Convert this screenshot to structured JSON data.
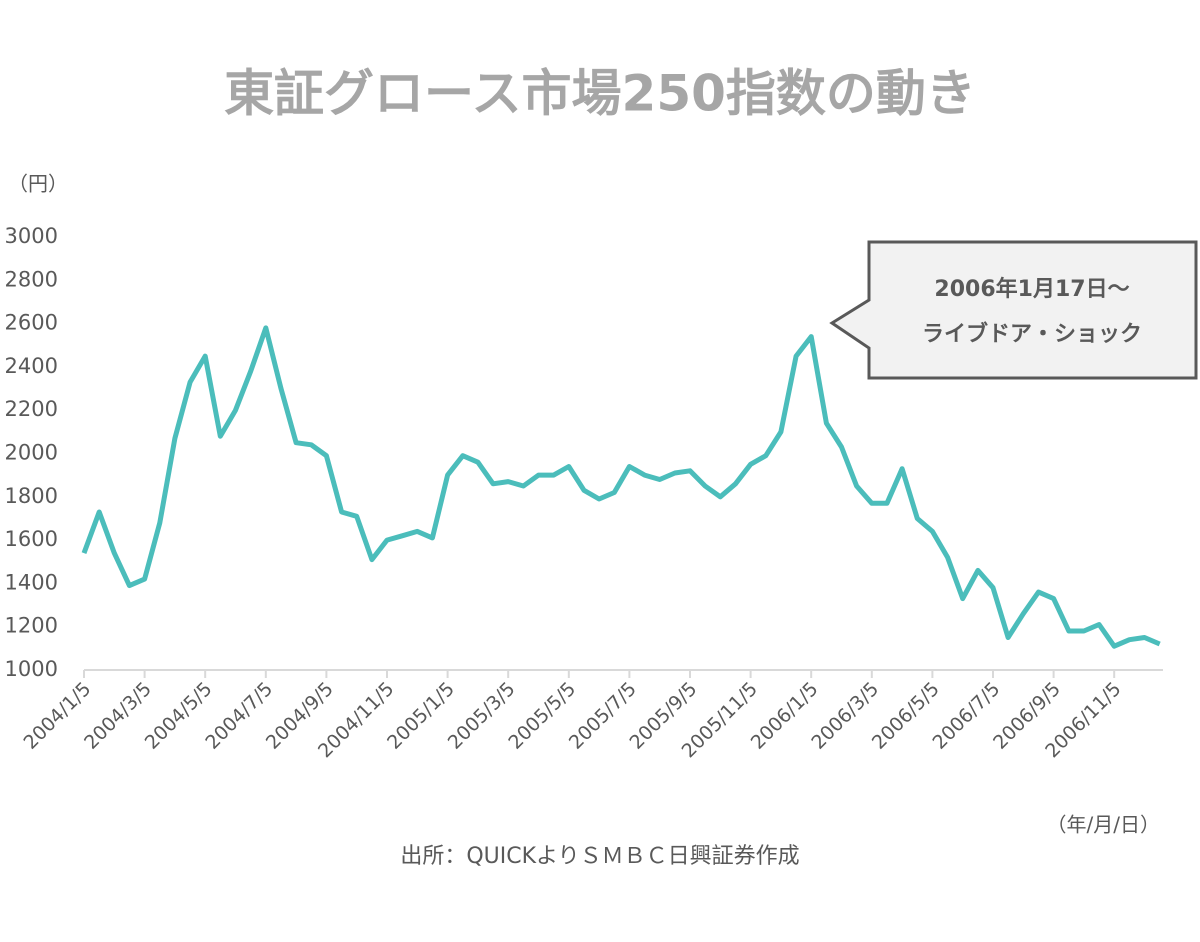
{
  "chart_data": {
    "type": "line",
    "title": "東証グロース市場250指数の動き",
    "y_unit": "（円）",
    "x_unit": "（年/月/日）",
    "source": "出所：QUICKよりＳＭＢＣ日興証券作成",
    "annotation": [
      "2006年1月17日～",
      "ライブドア・ショック"
    ],
    "color": "#4bbdbb",
    "categories": [
      "2004/1/5",
      null,
      null,
      null,
      "2004/3/5",
      null,
      null,
      null,
      "2004/5/5",
      null,
      null,
      null,
      "2004/7/5",
      null,
      null,
      null,
      "2004/9/5",
      null,
      null,
      null,
      "2004/11/5",
      null,
      null,
      null,
      "2005/1/5",
      null,
      null,
      null,
      "2005/3/5",
      null,
      null,
      null,
      "2005/5/5",
      null,
      null,
      null,
      "2005/7/5",
      null,
      null,
      null,
      "2005/9/5",
      null,
      null,
      null,
      "2005/11/5",
      null,
      null,
      null,
      "2006/1/5",
      null,
      null,
      null,
      "2006/3/5",
      null,
      null,
      null,
      "2006/5/5",
      null,
      null,
      null,
      "2006/7/5",
      null,
      null,
      null,
      "2006/9/5",
      null,
      null,
      null,
      "2006/11/5",
      null,
      null,
      null
    ],
    "values": [
      1540,
      1730,
      1540,
      1390,
      1420,
      1680,
      2070,
      2330,
      2450,
      2080,
      2200,
      2380,
      2580,
      2300,
      2050,
      2040,
      1990,
      1730,
      1710,
      1510,
      1600,
      1620,
      1640,
      1610,
      1900,
      1990,
      1960,
      1860,
      1870,
      1850,
      1900,
      1900,
      1940,
      1830,
      1790,
      1820,
      1940,
      1900,
      1880,
      1910,
      1920,
      1850,
      1800,
      1860,
      1950,
      1990,
      2100,
      2450,
      2540,
      2140,
      2030,
      1850,
      1770,
      1770,
      1930,
      1700,
      1640,
      1520,
      1330,
      1460,
      1380,
      1150,
      1260,
      1360,
      1330,
      1180,
      1180,
      1210,
      1110,
      1140,
      1150,
      1120
    ],
    "ylim": [
      1000,
      3000
    ],
    "yticks": [
      1000,
      1200,
      1400,
      1600,
      1800,
      2000,
      2200,
      2400,
      2600,
      2800,
      3000
    ]
  }
}
